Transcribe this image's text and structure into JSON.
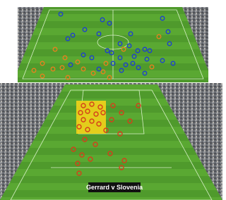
{
  "caption": "Gerrard v Slovenia"
}
